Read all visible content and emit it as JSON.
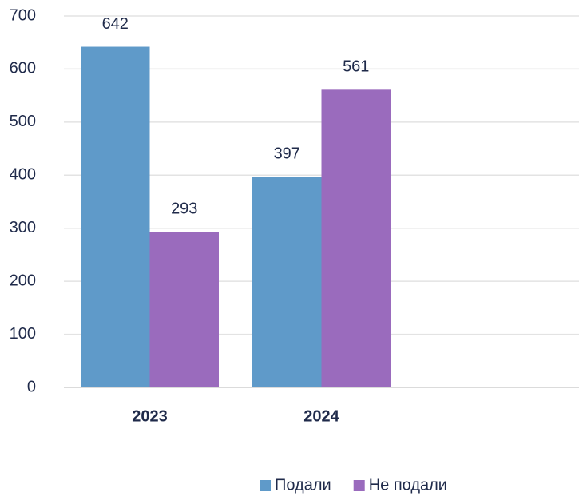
{
  "chart_data": {
    "type": "bar",
    "categories": [
      "2023",
      "2024",
      null
    ],
    "series": [
      {
        "name": "Подали",
        "color": "#5f9ac9",
        "values": [
          642,
          397,
          null
        ]
      },
      {
        "name": "Не подали",
        "color": "#9a6bbd",
        "values": [
          293,
          561,
          null
        ]
      }
    ],
    "ylim": [
      0,
      700
    ],
    "yticks": [
      0,
      100,
      200,
      300,
      400,
      500,
      600,
      700
    ],
    "grid": true,
    "legend": "bottom"
  }
}
